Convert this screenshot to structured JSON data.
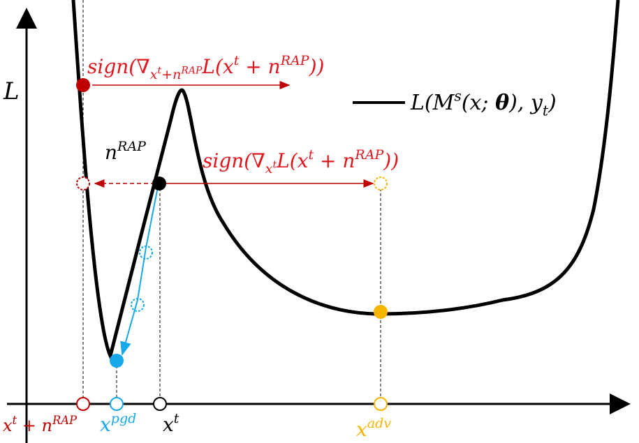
{
  "y_axis_label": "L",
  "legend": {
    "color": "#000000",
    "parts": [
      {
        "t": "L(M",
        "r": "base"
      },
      {
        "t": "s",
        "r": "sup"
      },
      {
        "t": "(x; ",
        "r": "base"
      },
      {
        "t": "θ",
        "r": "bold"
      },
      {
        "t": "), y",
        "r": "base"
      },
      {
        "t": "t",
        "r": "sub"
      },
      {
        "t": ")",
        "r": "base"
      }
    ]
  },
  "annotations": [
    {
      "color": "#e0161c",
      "parts": [
        {
          "t": "sign(∇",
          "r": "base"
        },
        {
          "t": "x",
          "r": "sub"
        },
        {
          "t": "t",
          "r": "subsup"
        },
        {
          "t": "+n",
          "r": "sub"
        },
        {
          "t": "RAP",
          "r": "subsup"
        },
        {
          "t": "L(x",
          "r": "base"
        },
        {
          "t": "t",
          "r": "sup"
        },
        {
          "t": " + n",
          "r": "base"
        },
        {
          "t": "RAP",
          "r": "sup"
        },
        {
          "t": "))",
          "r": "base"
        }
      ]
    },
    {
      "color": "#000000",
      "parts": [
        {
          "t": "n",
          "r": "base"
        },
        {
          "t": "RAP",
          "r": "sup"
        }
      ]
    },
    {
      "color": "#e0161c",
      "parts": [
        {
          "t": "sign(∇",
          "r": "base"
        },
        {
          "t": "x",
          "r": "sub"
        },
        {
          "t": "t",
          "r": "subsup"
        },
        {
          "t": "L(x",
          "r": "base"
        },
        {
          "t": "t",
          "r": "sup"
        },
        {
          "t": " + n",
          "r": "base"
        },
        {
          "t": "RAP",
          "r": "sup"
        },
        {
          "t": "))",
          "r": "base"
        }
      ]
    }
  ],
  "x_axis_labels": [
    {
      "color": "#c00000",
      "parts": [
        {
          "t": "x",
          "r": "base"
        },
        {
          "t": "t",
          "r": "sup"
        },
        {
          "t": " + n",
          "r": "base"
        },
        {
          "t": "RAP",
          "r": "sup"
        }
      ]
    },
    {
      "color": "#16a8e8",
      "parts": [
        {
          "t": "x",
          "r": "base"
        },
        {
          "t": "pgd",
          "r": "sup"
        }
      ]
    },
    {
      "color": "#000000",
      "parts": [
        {
          "t": "x",
          "r": "base"
        },
        {
          "t": "t",
          "r": "sup"
        }
      ]
    },
    {
      "color": "#f5b400",
      "parts": [
        {
          "t": "x",
          "r": "base"
        },
        {
          "t": "adv",
          "r": "sup"
        }
      ]
    }
  ]
}
